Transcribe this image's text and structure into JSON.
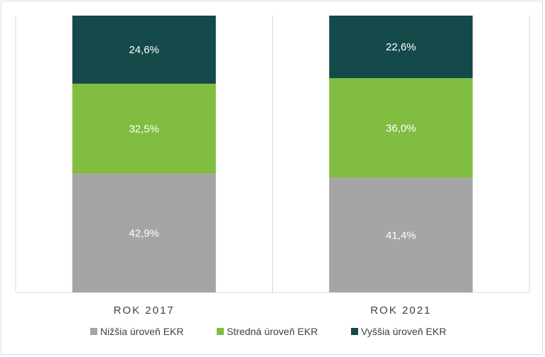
{
  "chart_data": {
    "type": "bar",
    "stacked": true,
    "percent": true,
    "categories": [
      "ROK 2017",
      "ROK 2021"
    ],
    "series": [
      {
        "name": "Nižšia úroveň EKR",
        "values": [
          42.9,
          41.4
        ],
        "labels": [
          "42,9%",
          "41,4%"
        ],
        "color": "#a5a5a5"
      },
      {
        "name": "Stredná úroveň EKR",
        "values": [
          32.5,
          36.0
        ],
        "labels": [
          "32,5%",
          "36,0%"
        ],
        "color": "#80bd41"
      },
      {
        "name": "Vyššia úroveň EKR",
        "values": [
          24.6,
          22.6
        ],
        "labels": [
          "24,6%",
          "22,6%"
        ],
        "color": "#154a4a"
      }
    ],
    "ylim": [
      0,
      100
    ],
    "grid": false,
    "legend_position": "bottom",
    "title": "",
    "xlabel": "",
    "ylabel": ""
  }
}
